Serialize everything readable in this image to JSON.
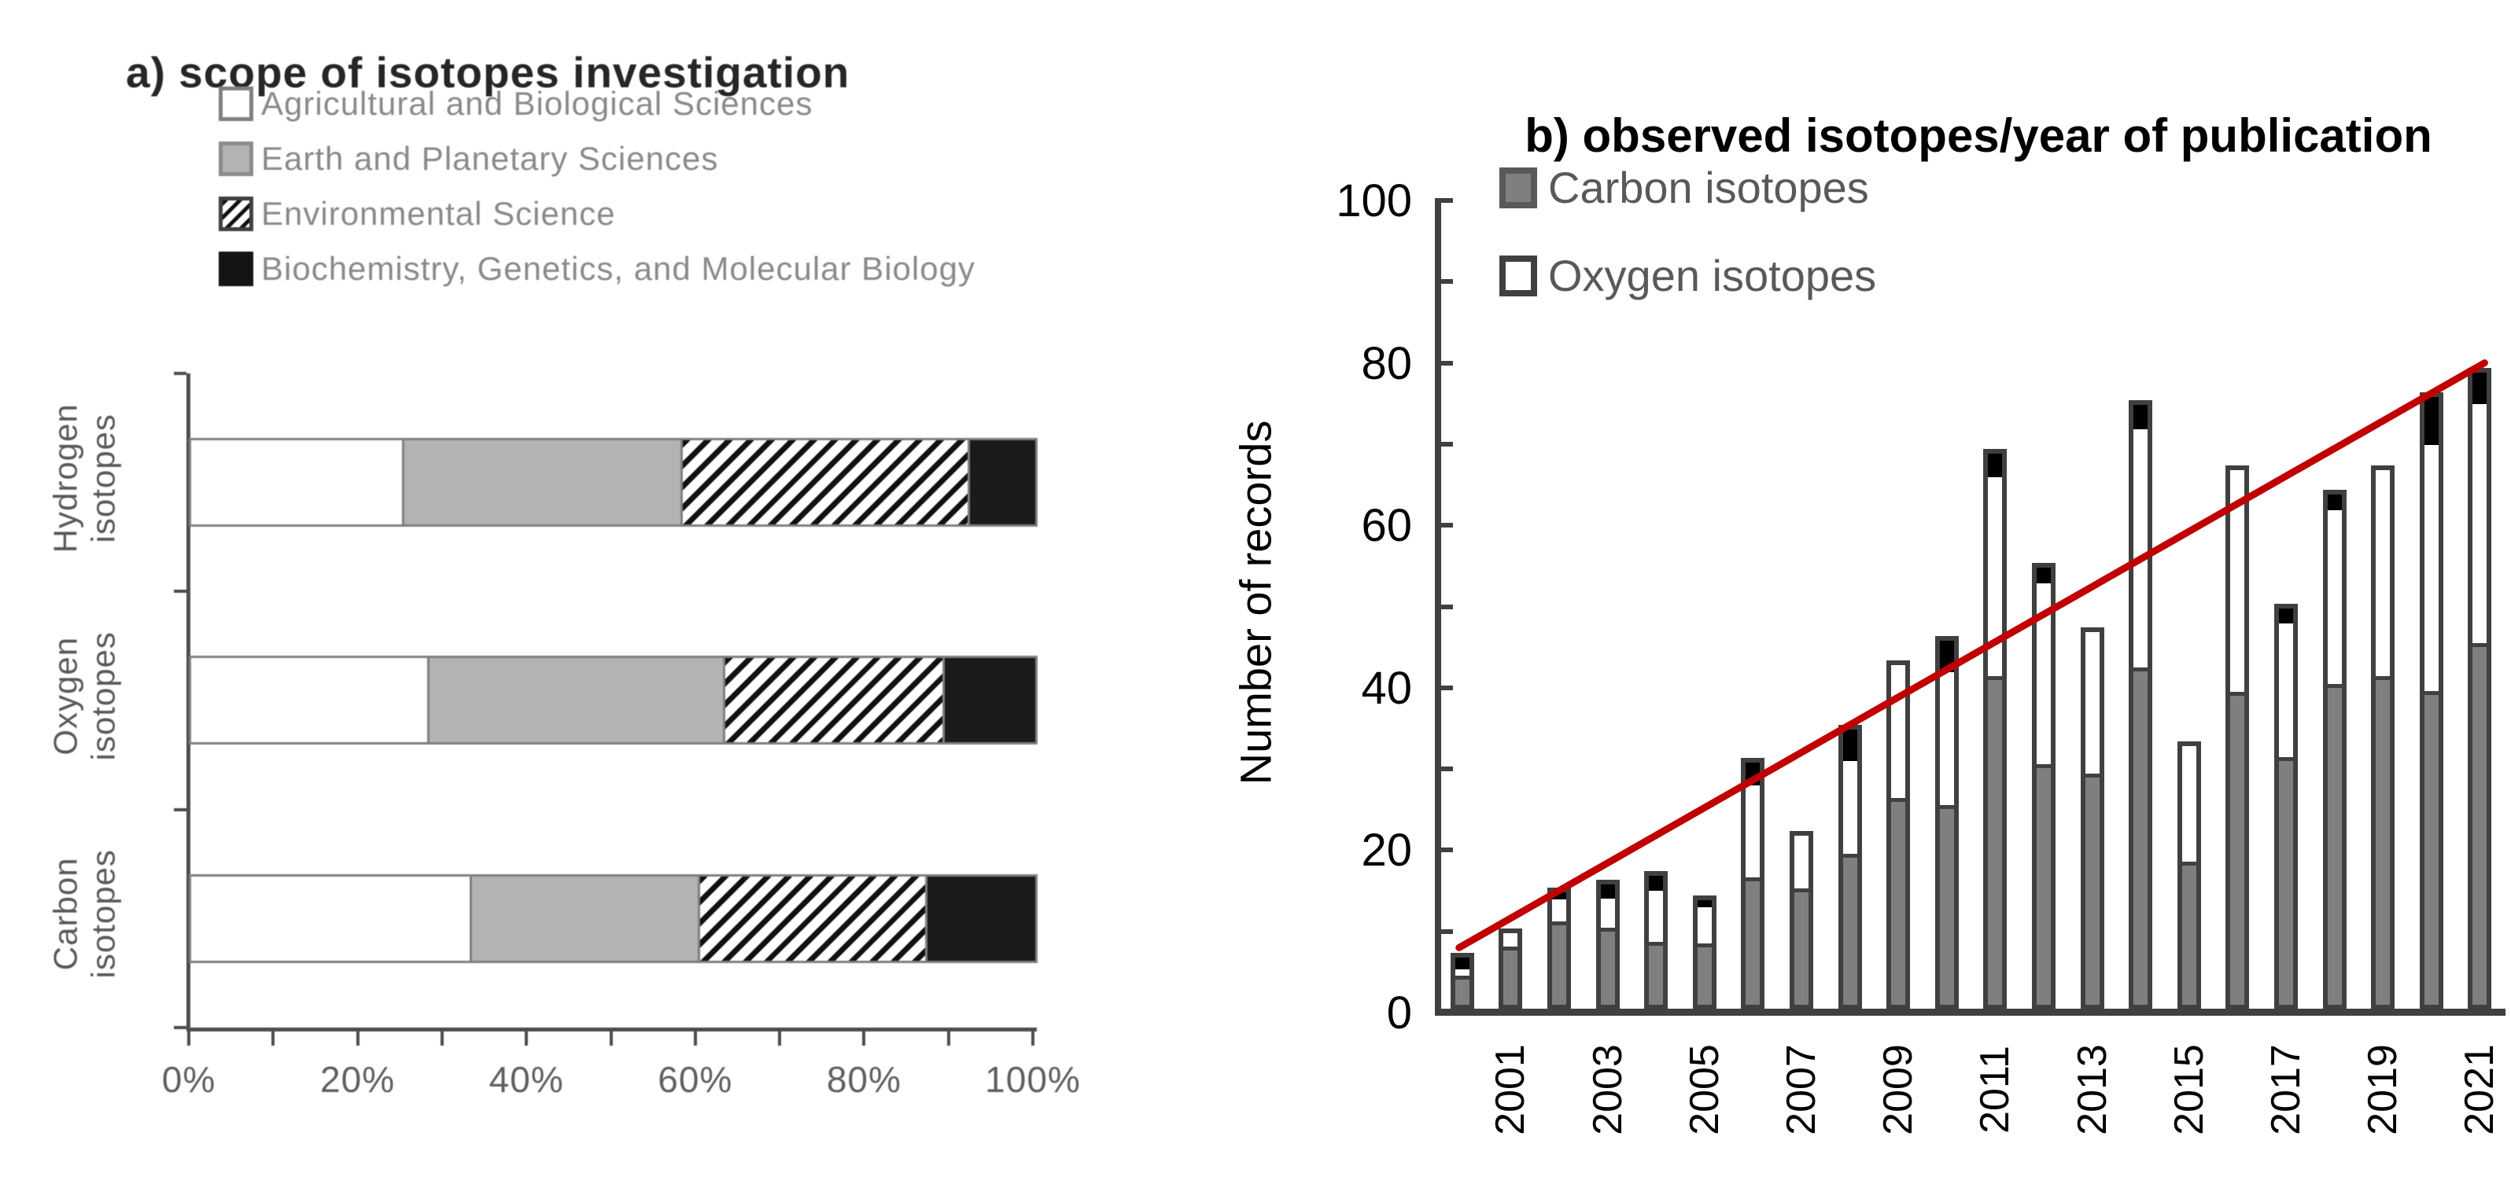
{
  "figure_background": "#ffffff",
  "chart_data": [
    {
      "id": "a",
      "type": "bar",
      "orientation": "horizontal-stacked",
      "title": "a) scope of isotopes investigation",
      "categories": [
        "Hydrogen isotopes",
        "Oxygen isotopes",
        "Carbon isotopes"
      ],
      "series": [
        {
          "name": "Agricultural and Biological Sciences",
          "pattern": "white",
          "values": [
            25,
            28,
            33
          ]
        },
        {
          "name": "Earth and Planetary Sciences",
          "pattern": "gray",
          "values": [
            33,
            35,
            27
          ]
        },
        {
          "name": "Environmental Science",
          "pattern": "hatch",
          "values": [
            34,
            26,
            27
          ]
        },
        {
          "name": "Biochemistry, Genetics, and Molecular Biology",
          "pattern": "black",
          "values": [
            8,
            11,
            13
          ]
        }
      ],
      "legend": [
        {
          "label": "Agricultural and Biological Sciences",
          "swatch": "white"
        },
        {
          "label": "Earth and Planetary Sciences",
          "swatch": "gray"
        },
        {
          "label": "Environmental Science",
          "swatch": "hatch"
        },
        {
          "label": "Biochemistry, Genetics, and Molecular Biology",
          "swatch": "black"
        }
      ],
      "xlabel": "",
      "ylabel": "",
      "xlim": [
        0,
        100
      ],
      "x_tick_labels": [
        "0%",
        "20%",
        "40%",
        "60%",
        "80%",
        "100%"
      ],
      "minor_tick_step_percent": 10,
      "grid": false,
      "colors": {
        "gray_fill": "#b3b3b3",
        "black_fill": "#1a1a1a",
        "bar_border": "#7f7f7f",
        "axis": "#4d4d4d",
        "text_gray": "#595959"
      }
    },
    {
      "id": "b",
      "type": "bar",
      "orientation": "vertical-stacked",
      "title": "b) observed isotopes/year of publication",
      "ylabel": "Number of records",
      "x": [
        2000,
        2001,
        2002,
        2003,
        2004,
        2005,
        2006,
        2007,
        2008,
        2009,
        2010,
        2011,
        2012,
        2013,
        2014,
        2015,
        2016,
        2017,
        2018,
        2019,
        2020,
        2021
      ],
      "series": [
        {
          "name": "Carbon isotopes",
          "pattern": "carbon",
          "values": [
            4,
            8,
            11,
            10,
            8,
            8,
            16,
            15,
            19,
            26,
            25,
            41,
            30,
            29,
            42,
            18,
            39,
            31,
            40,
            41,
            39,
            45
          ]
        },
        {
          "name": "Oxygen isotopes",
          "pattern": "oxygen",
          "values": [
            1,
            2,
            3,
            4,
            7,
            5,
            12,
            7,
            12,
            17,
            17,
            25,
            23,
            18,
            30,
            15,
            28,
            17,
            22,
            26,
            31,
            30
          ]
        },
        {
          "name": "unlabeled black segment",
          "pattern": "black",
          "values": [
            2,
            0,
            1,
            2,
            2,
            1,
            3,
            0,
            4,
            0,
            4,
            3,
            2,
            0,
            3,
            0,
            0,
            2,
            2,
            0,
            6,
            4
          ]
        }
      ],
      "totals": [
        7,
        10,
        15,
        16,
        17,
        14,
        31,
        22,
        35,
        43,
        46,
        69,
        55,
        47,
        75,
        33,
        67,
        50,
        64,
        67,
        76,
        79
      ],
      "legend": [
        {
          "label": "Carbon isotopes",
          "swatch": "carbon"
        },
        {
          "label": "Oxygen isotopes",
          "swatch": "oxygen"
        }
      ],
      "ylim": [
        0,
        100
      ],
      "y_tick_labels": [
        "0",
        "20",
        "40",
        "60",
        "80",
        "100"
      ],
      "y_minor_tick_step": 10,
      "x_tick_labels": [
        "2001",
        "2003",
        "2005",
        "2007",
        "2009",
        "2011",
        "2013",
        "2015",
        "2017",
        "2019",
        "2021"
      ],
      "grid": false,
      "trendline": {
        "color": "#c00000",
        "x1": 2000,
        "y1": 8,
        "x2": 2021,
        "y2": 80
      },
      "colors": {
        "carbon_fill": "#7f7f7f",
        "oxygen_fill": "#ffffff",
        "black_fill": "#000000",
        "bar_border": "#404040",
        "axis": "#404040",
        "trend": "#c00000",
        "legend_text": "#595959"
      }
    }
  ]
}
